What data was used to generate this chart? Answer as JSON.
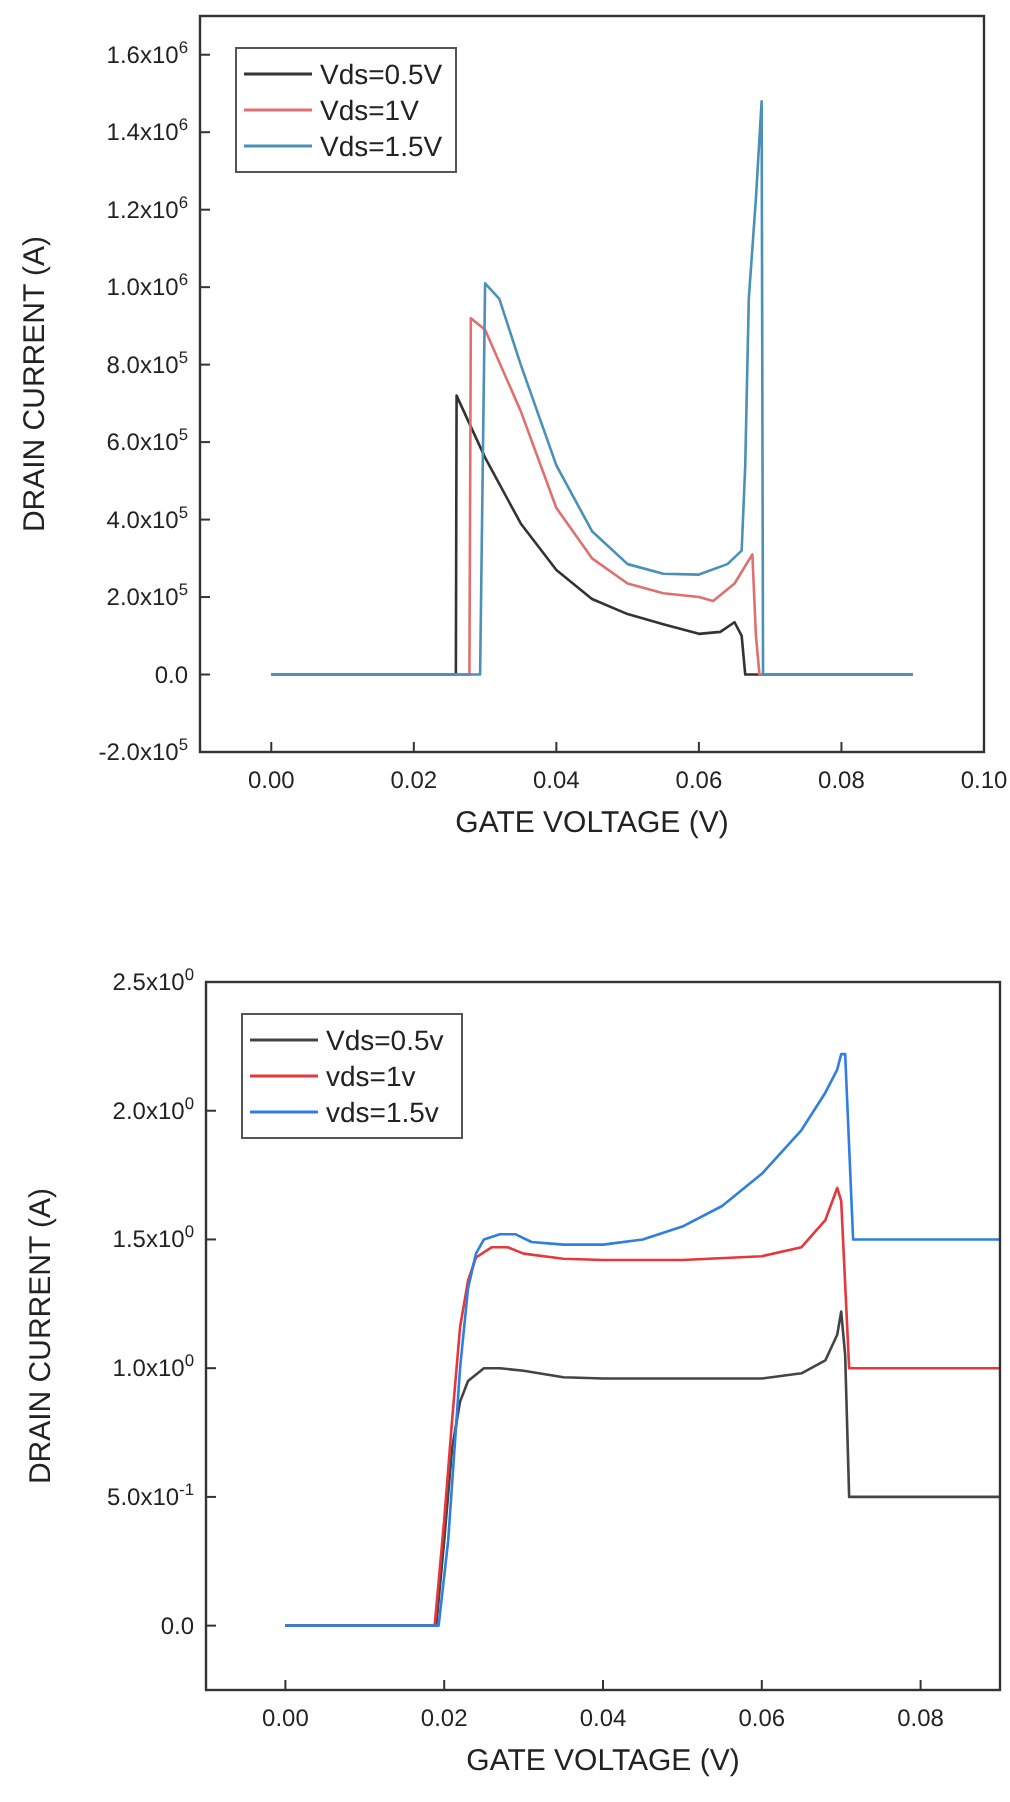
{
  "chart_data": [
    {
      "type": "line",
      "xlabel": "GATE VOLTAGE (V)",
      "ylabel": "DRAIN CURRENT (A)",
      "legend": "top left",
      "xlim": [
        -0.01,
        0.1
      ],
      "ylim": [
        -200000,
        1700000
      ],
      "xticks": [
        {
          "value": 0,
          "label": "0.00"
        },
        {
          "value": 0.02,
          "label": "0.02"
        },
        {
          "value": 0.04,
          "label": "0.04"
        },
        {
          "value": 0.06,
          "label": "0.06"
        },
        {
          "value": 0.08,
          "label": "0.08"
        },
        {
          "value": 0.1,
          "label": "0.10"
        }
      ],
      "yticks": [
        {
          "value": -200000,
          "label": "-2.0x10$^{5}$"
        },
        {
          "value": 0,
          "label": "0.0"
        },
        {
          "value": 200000,
          "label": "2.0x10$^{5}$"
        },
        {
          "value": 400000,
          "label": "4.0x10$^{5}$"
        },
        {
          "value": 600000,
          "label": "6.0x10$^{5}$"
        },
        {
          "value": 800000,
          "label": "8.0x10$^{5}$"
        },
        {
          "value": 1000000,
          "label": "1.0x10$^{6}$"
        },
        {
          "value": 1200000,
          "label": "1.2x10$^{6}$"
        },
        {
          "value": 1400000,
          "label": "1.4x10$^{6}$"
        },
        {
          "value": 1600000,
          "label": "1.6x10$^{6}$"
        }
      ],
      "series": [
        {
          "name": "Vds=0.5V",
          "color": "#333333",
          "x": [
            0,
            0.0259,
            0.026,
            0.03,
            0.035,
            0.04,
            0.045,
            0.05,
            0.055,
            0.06,
            0.063,
            0.065,
            0.066,
            0.0665,
            0.09
          ],
          "values": [
            0,
            0,
            720000,
            560000,
            390000,
            270000,
            195000,
            156000,
            130000,
            105000,
            110000,
            135000,
            100000,
            0,
            0
          ]
        },
        {
          "name": "Vds=1V",
          "color": "#e07070",
          "x": [
            0,
            0.0278,
            0.028,
            0.03,
            0.035,
            0.04,
            0.045,
            0.05,
            0.055,
            0.06,
            0.062,
            0.065,
            0.0675,
            0.068,
            0.0685,
            0.09
          ],
          "values": [
            0,
            0,
            920000,
            890000,
            680000,
            430000,
            300000,
            235000,
            210000,
            200000,
            190000,
            235000,
            310000,
            100000,
            0,
            0
          ]
        },
        {
          "name": "Vds=1.5V",
          "color": "#4a90b8",
          "x": [
            0,
            0.0293,
            0.03,
            0.032,
            0.035,
            0.04,
            0.045,
            0.05,
            0.055,
            0.06,
            0.064,
            0.066,
            0.0665,
            0.067,
            0.068,
            0.0688,
            0.069,
            0.09
          ],
          "values": [
            0,
            0,
            1010000,
            970000,
            800000,
            540000,
            370000,
            285000,
            260000,
            258000,
            285000,
            320000,
            540000,
            970000,
            1230000,
            1480000,
            0,
            0
          ]
        }
      ]
    },
    {
      "type": "line",
      "xlabel": "GATE VOLTAGE (V)",
      "ylabel": "DRAIN CURRENT (A)",
      "legend": "top left",
      "xlim": [
        -0.01,
        0.09
      ],
      "ylim": [
        -0.25,
        2.5
      ],
      "xticks": [
        {
          "value": 0,
          "label": "0.00"
        },
        {
          "value": 0.02,
          "label": "0.02"
        },
        {
          "value": 0.04,
          "label": "0.04"
        },
        {
          "value": 0.06,
          "label": "0.06"
        },
        {
          "value": 0.08,
          "label": "0.08"
        }
      ],
      "yticks": [
        {
          "value": 0,
          "label": "0.0"
        },
        {
          "value": 0.5,
          "label": "5.0x10$^{-1}$"
        },
        {
          "value": 1,
          "label": "1.0x10$^{0}$"
        },
        {
          "value": 1.5,
          "label": "1.5x10$^{0}$"
        },
        {
          "value": 2,
          "label": "2.0x10$^{0}$"
        },
        {
          "value": 2.5,
          "label": "2.5x10$^{0}$"
        }
      ],
      "series": [
        {
          "name": "Vds=0.5v",
          "color": "#444444",
          "x": [
            0,
            0.019,
            0.02,
            0.021,
            0.022,
            0.023,
            0.025,
            0.027,
            0.03,
            0.035,
            0.04,
            0.05,
            0.06,
            0.065,
            0.068,
            0.0695,
            0.07,
            0.0705,
            0.071,
            0.09
          ],
          "values": [
            0,
            0,
            0.33,
            0.69,
            0.87,
            0.95,
            1.0,
            1.0,
            0.99,
            0.965,
            0.96,
            0.96,
            0.96,
            0.98,
            1.03,
            1.13,
            1.22,
            1.05,
            0.5,
            0.5
          ]
        },
        {
          "name": "vds=1v",
          "color": "#e8373a",
          "x": [
            0,
            0.0188,
            0.02,
            0.021,
            0.022,
            0.023,
            0.024,
            0.026,
            0.028,
            0.03,
            0.035,
            0.04,
            0.05,
            0.06,
            0.065,
            0.068,
            0.0695,
            0.07,
            0.071,
            0.09
          ],
          "values": [
            0,
            0,
            0.41,
            0.8,
            1.16,
            1.34,
            1.43,
            1.47,
            1.47,
            1.445,
            1.425,
            1.42,
            1.42,
            1.435,
            1.47,
            1.575,
            1.7,
            1.65,
            1.0,
            1.0
          ]
        },
        {
          "name": "vds=1.5v",
          "color": "#2f7fe0",
          "x": [
            0,
            0.0193,
            0.0205,
            0.022,
            0.023,
            0.024,
            0.025,
            0.027,
            0.029,
            0.031,
            0.035,
            0.04,
            0.045,
            0.05,
            0.055,
            0.06,
            0.065,
            0.068,
            0.0695,
            0.07,
            0.0705,
            0.0715,
            0.09
          ],
          "values": [
            0,
            0,
            0.33,
            1.0,
            1.31,
            1.445,
            1.5,
            1.52,
            1.52,
            1.49,
            1.48,
            1.48,
            1.5,
            1.55,
            1.63,
            1.755,
            1.925,
            2.07,
            2.16,
            2.22,
            2.22,
            1.5,
            1.5
          ]
        }
      ]
    }
  ]
}
